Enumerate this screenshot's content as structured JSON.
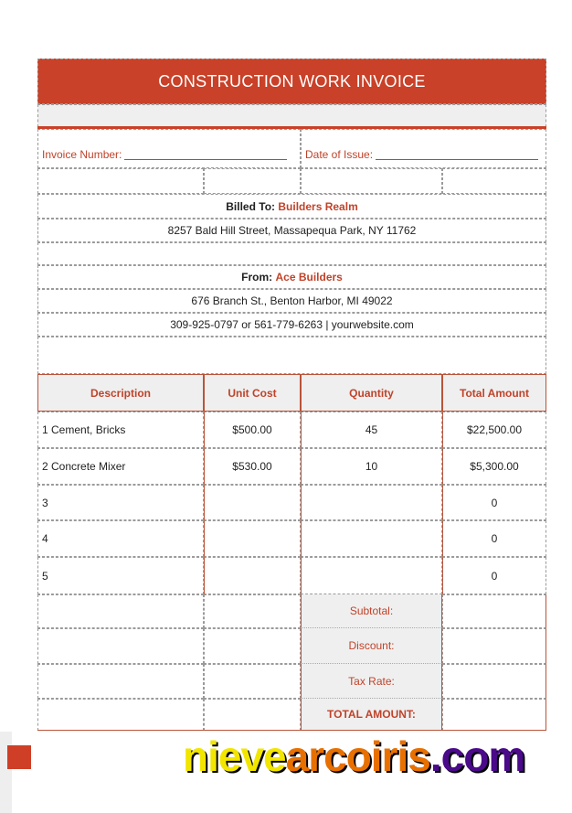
{
  "title": "CONSTRUCTION WORK INVOICE",
  "invoice_number_label": "Invoice Number:",
  "date_label": "Date of Issue:",
  "billed_to": {
    "label": "Billed To:",
    "name": "Builders Realm",
    "address": "8257 Bald Hill Street, Massapequa Park, NY 11762"
  },
  "from": {
    "label": "From:",
    "name": "Ace Builders",
    "address": "676 Branch St., Benton Harbor, MI 49022",
    "contact": "309-925-0797 or 561-779-6263 | yourwebsite.com"
  },
  "table": {
    "headers": [
      "Description",
      "Unit Cost",
      "Quantity",
      "Total Amount"
    ],
    "rows": [
      [
        "1 Cement, Bricks",
        "$500.00",
        "45",
        "$22,500.00"
      ],
      [
        "2 Concrete Mixer",
        "$530.00",
        "10",
        "$5,300.00"
      ],
      [
        "3",
        "",
        "",
        "0"
      ],
      [
        "4",
        "",
        "",
        "0"
      ],
      [
        "5",
        "",
        "",
        "0"
      ]
    ]
  },
  "summary": [
    "Subtotal:",
    "Discount:",
    "Tax Rate:",
    "TOTAL AMOUNT:"
  ],
  "watermark": {
    "a": "nieve",
    "b": "arcoiris",
    "c": ".com"
  },
  "colors": {
    "accent": "#c94128",
    "watermark_yellow": "#f2e600",
    "watermark_orange": "#e87000",
    "watermark_purple": "#4a0a8a"
  }
}
